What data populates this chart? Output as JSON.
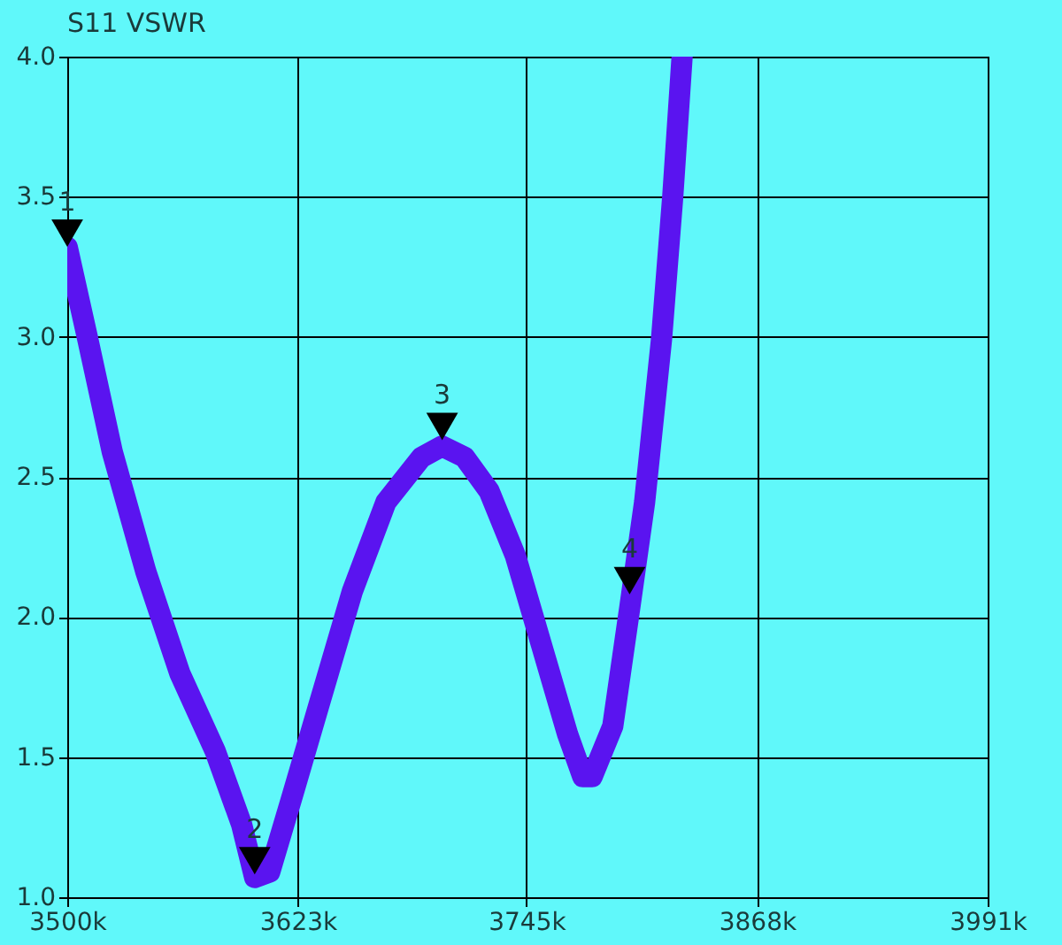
{
  "chart_data": {
    "type": "line",
    "title": "S11 VSWR",
    "x": [
      3500,
      3511,
      3524,
      3542,
      3560,
      3579,
      3593,
      3600,
      3608,
      3620,
      3634,
      3652,
      3670,
      3689,
      3700,
      3712,
      3725,
      3739,
      3753,
      3767,
      3775,
      3780,
      3791,
      3800,
      3808,
      3817,
      3823,
      3828
    ],
    "series": [
      {
        "color": "#5a14f0",
        "values": [
          3.32,
          2.99,
          2.59,
          2.16,
          1.8,
          1.52,
          1.26,
          1.07,
          1.09,
          1.36,
          1.68,
          2.09,
          2.41,
          2.57,
          2.61,
          2.57,
          2.45,
          2.22,
          1.9,
          1.58,
          1.43,
          1.43,
          1.61,
          2.03,
          2.41,
          2.99,
          3.5,
          4.0
        ]
      },
      {
        "type": "scatter",
        "color": "#000000",
        "marker": "triangle",
        "x": [
          3500,
          3600,
          3700,
          3800
        ],
        "values": [
          3.37,
          1.13,
          2.68,
          2.13
        ]
      }
    ],
    "annotations": [
      {
        "text": "1",
        "x": 3500,
        "y": 3.37
      },
      {
        "text": "2",
        "x": 3600,
        "y": 1.13
      },
      {
        "text": "3",
        "x": 3700,
        "y": 2.68
      },
      {
        "text": "4",
        "x": 3800,
        "y": 2.13
      }
    ],
    "xlim": [
      3500,
      3991
    ],
    "xticks": [
      {
        "value": 3500,
        "label": "3500k"
      },
      {
        "value": 3623,
        "label": "3623k"
      },
      {
        "value": 3745,
        "label": "3745k"
      },
      {
        "value": 3868,
        "label": "3868k"
      },
      {
        "value": 3991,
        "label": "3991k"
      }
    ],
    "ylim": [
      1.0,
      4.0
    ],
    "yticks": [
      {
        "value": 1.0,
        "label": "1.0"
      },
      {
        "value": 1.5,
        "label": "1.5"
      },
      {
        "value": 2.0,
        "label": "2.0"
      },
      {
        "value": 2.5,
        "label": "2.5"
      },
      {
        "value": 3.0,
        "label": "3.0"
      },
      {
        "value": 3.5,
        "label": "3.5"
      },
      {
        "value": 4.0,
        "label": "4.0"
      }
    ],
    "grid": true,
    "legend": false
  }
}
